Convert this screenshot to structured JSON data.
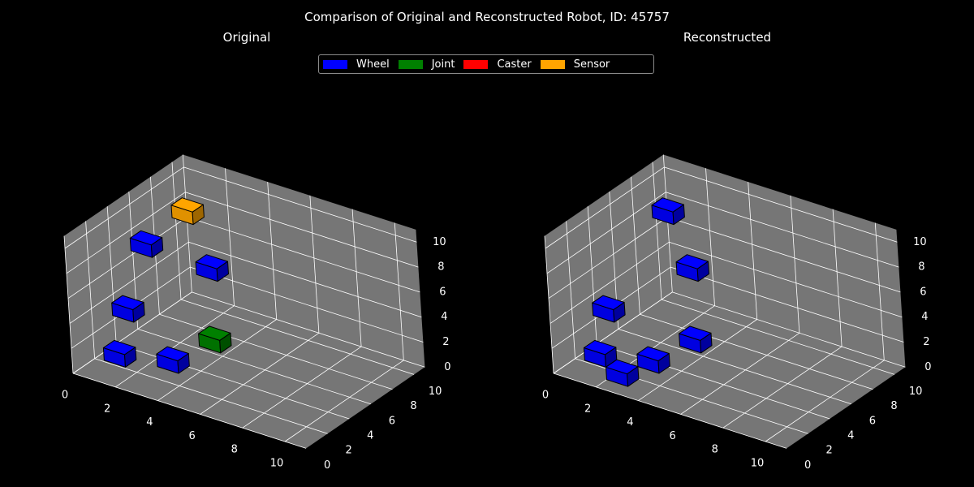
{
  "figure": {
    "suptitle": "Comparison of Original and Reconstructed Robot, ID: 45757",
    "background": "#000000",
    "pane_color": "#767676"
  },
  "legend": {
    "items": [
      {
        "label": "Wheel",
        "color": "#0000ff"
      },
      {
        "label": "Joint",
        "color": "#008000"
      },
      {
        "label": "Caster",
        "color": "#ff0000"
      },
      {
        "label": "Sensor",
        "color": "#ffa500"
      }
    ]
  },
  "chart_data": [
    {
      "type": "scatter3d",
      "title": "Original",
      "xlim": [
        0,
        11
      ],
      "ylim": [
        0,
        11
      ],
      "zlim": [
        0,
        11
      ],
      "xticks": [
        "0",
        "2",
        "4",
        "6",
        "8",
        "10"
      ],
      "yticks": [
        "0",
        "2",
        "4",
        "6",
        "8",
        "10"
      ],
      "zticks": [
        "0",
        "2",
        "4",
        "6",
        "8",
        "10"
      ],
      "grid": true,
      "voxels": [
        {
          "x": 1,
          "y": 1,
          "z": 1,
          "part": "Wheel"
        },
        {
          "x": 3,
          "y": 2,
          "z": 1,
          "part": "Wheel"
        },
        {
          "x": 1,
          "y": 2,
          "z": 4,
          "part": "Wheel"
        },
        {
          "x": 1,
          "y": 4,
          "z": 8,
          "part": "Wheel"
        },
        {
          "x": 3,
          "y": 6,
          "z": 6,
          "part": "Wheel"
        },
        {
          "x": 4,
          "y": 4,
          "z": 2,
          "part": "Joint"
        },
        {
          "x": 2,
          "y": 6,
          "z": 10,
          "part": "Sensor"
        }
      ]
    },
    {
      "type": "scatter3d",
      "title": "Reconstructed",
      "xlim": [
        0,
        11
      ],
      "ylim": [
        0,
        11
      ],
      "zlim": [
        0,
        11
      ],
      "xticks": [
        "0",
        "2",
        "4",
        "6",
        "8",
        "10"
      ],
      "yticks": [
        "0",
        "2",
        "4",
        "6",
        "8",
        "10"
      ],
      "zticks": [
        "0",
        "2",
        "4",
        "6",
        "8",
        "10"
      ],
      "grid": true,
      "voxels": [
        {
          "x": 1,
          "y": 1,
          "z": 1,
          "part": "Wheel"
        },
        {
          "x": 2,
          "y": 1,
          "z": 0,
          "part": "Wheel"
        },
        {
          "x": 3,
          "y": 2,
          "z": 1,
          "part": "Wheel"
        },
        {
          "x": 1,
          "y": 2,
          "z": 4,
          "part": "Wheel"
        },
        {
          "x": 4,
          "y": 4,
          "z": 2,
          "part": "Wheel"
        },
        {
          "x": 3,
          "y": 6,
          "z": 6,
          "part": "Wheel"
        },
        {
          "x": 2,
          "y": 6,
          "z": 10,
          "part": "Wheel"
        }
      ]
    }
  ]
}
